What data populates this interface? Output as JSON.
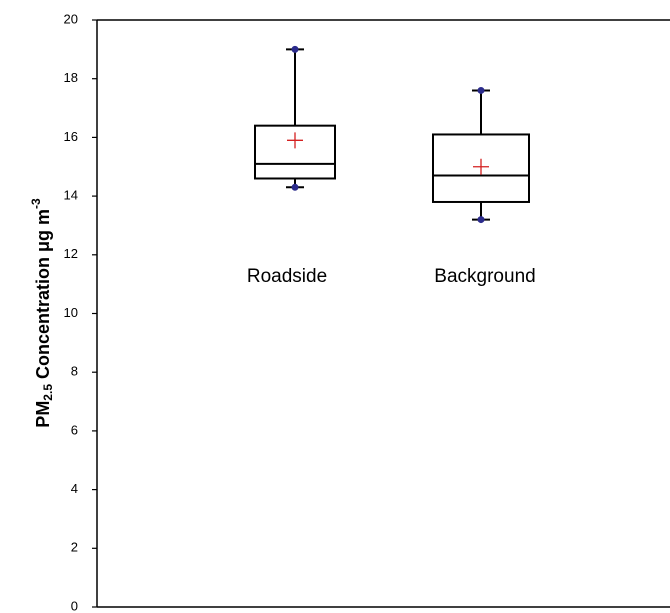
{
  "chart_data": {
    "type": "box",
    "y_label": {
      "main": "PM",
      "sub": "2.5",
      "rest": " Concentration μg m",
      "sup": "-3"
    },
    "series": [
      {
        "name": "Roadside",
        "min": 14.3,
        "q1": 14.6,
        "median": 15.1,
        "q3": 16.4,
        "max": 19.0,
        "mean": 15.9
      },
      {
        "name": "Background",
        "min": 13.2,
        "q1": 13.8,
        "median": 14.7,
        "q3": 16.1,
        "max": 17.6,
        "mean": 15.0
      }
    ],
    "box_color": "#000000",
    "whisker_end_color": "#2b2b8c",
    "mean_color": "#d42020",
    "ylim": [
      0,
      20
    ],
    "yticks": [
      0,
      2,
      4,
      6,
      8,
      10,
      12,
      14,
      16,
      18,
      20
    ],
    "grid": false
  }
}
